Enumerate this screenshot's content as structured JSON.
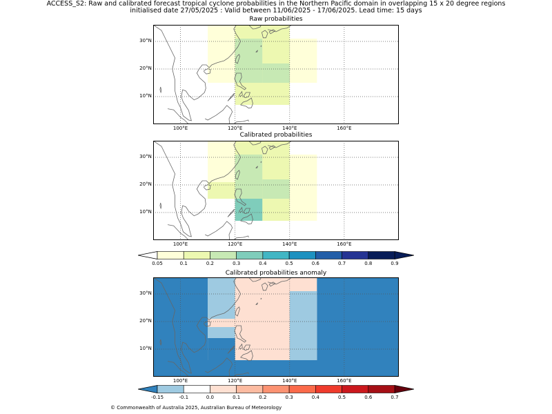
{
  "title_line1": "ACCESS_S2: Raw and calibrated forecast tropical cyclone probabilities in the Northern Pacific domain in overlapping 15 x 20 degree regions",
  "title_line2": "initialised date 27/05/2025 :  Valid between 11/06/2025 - 17/06/2025. Lead time: 15 days",
  "panels": [
    {
      "title": "Raw probabilities"
    },
    {
      "title": "Calibrated probabilities"
    },
    {
      "title": "Calibrated probabilities anomaly"
    }
  ],
  "axes": {
    "lon_labels": [
      "100°E",
      "120°E",
      "140°E",
      "160°E"
    ],
    "lat_labels": [
      "10°N",
      "20°N",
      "30°N"
    ],
    "lon_range": [
      90,
      180
    ],
    "lat_range": [
      0,
      36
    ]
  },
  "colorbar_prob": {
    "ticks": [
      "0.05",
      "0.1",
      "0.2",
      "0.3",
      "0.4",
      "0.5",
      "0.6",
      "0.7",
      "0.8",
      "0.9"
    ],
    "colors": [
      "#ffffd9",
      "#edf8b1",
      "#c7e9b4",
      "#7fcdbb",
      "#41b6c4",
      "#1d91c0",
      "#225ea8",
      "#253494",
      "#081d58"
    ],
    "under_color": "#ffffff",
    "over_color": "#081d58"
  },
  "colorbar_anom": {
    "ticks": [
      "-0.15",
      "-0.1",
      "0.0",
      "0.1",
      "0.2",
      "0.3",
      "0.4",
      "0.5",
      "0.6",
      "0.7"
    ],
    "colors": [
      "#9ecae1",
      "#ffffff",
      "#fee0d2",
      "#fcbba1",
      "#fc9272",
      "#fb6a4a",
      "#ef3b2c",
      "#cb181d",
      "#a50f15"
    ],
    "under_color": "#3182bd",
    "over_color": "#67000d"
  },
  "chart_data": [
    {
      "type": "heatmap",
      "title": "Raw probabilities",
      "regions": [
        {
          "lon": [
            110,
            130
          ],
          "lat": [
            15,
            36
          ],
          "value": 0.07
        },
        {
          "lon": [
            130,
            150
          ],
          "lat": [
            15,
            31
          ],
          "value": 0.07
        },
        {
          "lon": [
            120,
            140
          ],
          "lat": [
            7,
            15
          ],
          "value": 0.12
        },
        {
          "lon": [
            130,
            140
          ],
          "lat": [
            15,
            31
          ],
          "value": 0.12
        },
        {
          "lon": [
            120,
            130
          ],
          "lat": [
            15,
            36
          ],
          "value": 0.12
        },
        {
          "lon": [
            130,
            140
          ],
          "lat": [
            31,
            36
          ],
          "value": 0.12
        },
        {
          "lon": [
            120,
            130
          ],
          "lat": [
            15,
            31
          ],
          "value": 0.22
        },
        {
          "lon": [
            130,
            140
          ],
          "lat": [
            15,
            22
          ],
          "value": 0.22
        }
      ]
    },
    {
      "type": "heatmap",
      "title": "Calibrated probabilities",
      "regions": [
        {
          "lon": [
            110,
            130
          ],
          "lat": [
            15,
            36
          ],
          "value": 0.07
        },
        {
          "lon": [
            130,
            150
          ],
          "lat": [
            7,
            31
          ],
          "value": 0.07
        },
        {
          "lon": [
            120,
            140
          ],
          "lat": [
            7,
            15
          ],
          "value": 0.12
        },
        {
          "lon": [
            130,
            140
          ],
          "lat": [
            15,
            31
          ],
          "value": 0.12
        },
        {
          "lon": [
            120,
            130
          ],
          "lat": [
            15,
            36
          ],
          "value": 0.12
        },
        {
          "lon": [
            130,
            140
          ],
          "lat": [
            31,
            36
          ],
          "value": 0.12
        },
        {
          "lon": [
            110,
            120
          ],
          "lat": [
            15,
            21
          ],
          "value": 0.12
        },
        {
          "lon": [
            120,
            130
          ],
          "lat": [
            15,
            31
          ],
          "value": 0.22
        },
        {
          "lon": [
            130,
            140
          ],
          "lat": [
            15,
            22
          ],
          "value": 0.22
        },
        {
          "lon": [
            120,
            130
          ],
          "lat": [
            7,
            15
          ],
          "value": 0.32
        }
      ]
    },
    {
      "type": "heatmap",
      "title": "Calibrated probabilities anomaly",
      "background_value": -0.2,
      "regions": [
        {
          "lon": [
            110,
            150
          ],
          "lat": [
            6,
            36
          ],
          "value": 0.0
        },
        {
          "lon": [
            110,
            120
          ],
          "lat": [
            21,
            36
          ],
          "value": -0.12
        },
        {
          "lon": [
            110,
            120
          ],
          "lat": [
            14,
            18
          ],
          "value": -0.12
        },
        {
          "lon": [
            140,
            150
          ],
          "lat": [
            6,
            31
          ],
          "value": -0.12
        },
        {
          "lon": [
            120,
            130
          ],
          "lat": [
            14,
            31
          ],
          "value": 0.05
        },
        {
          "lon": [
            130,
            140
          ],
          "lat": [
            15,
            22
          ],
          "value": 0.05
        },
        {
          "lon": [
            110,
            120
          ],
          "lat": [
            0,
            14
          ],
          "value": -0.2
        },
        {
          "lon": [
            120,
            140
          ],
          "lat": [
            0,
            6
          ],
          "value": -0.2
        }
      ]
    }
  ],
  "footer": "© Commonwealth of Australia 2025, Australian Bureau of Meteorology"
}
